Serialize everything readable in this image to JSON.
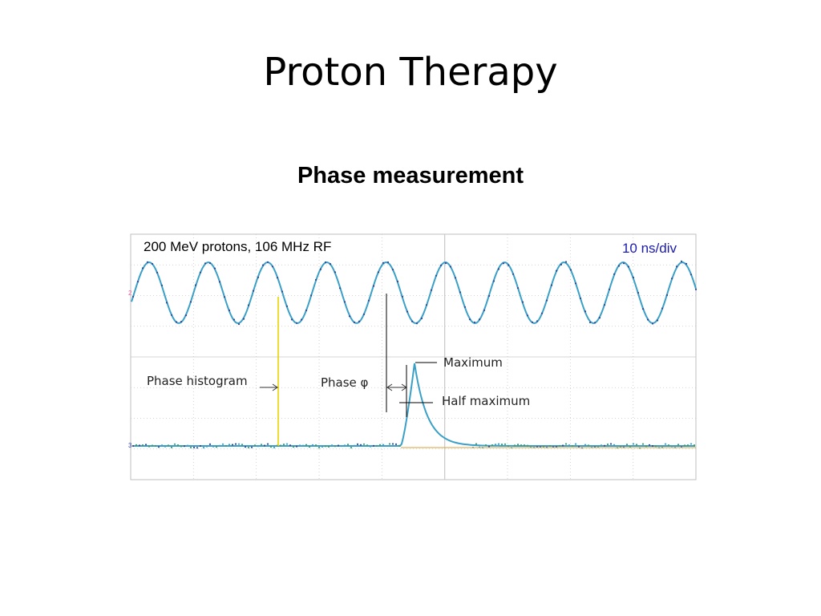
{
  "slide": {
    "title": "Proton Therapy",
    "subtitle": "Phase measurement"
  },
  "scope": {
    "beam_label": "200 MeV protons, 106 MHz RF",
    "timebase_label": "10 ns/div",
    "annotations": {
      "phase_histogram": "Phase histogram",
      "phase": "Phase φ",
      "maximum": "Maximum",
      "half_maximum": "Half maximum"
    },
    "colors": {
      "trace": "#3aa0c8",
      "trace_dark": "#35459a",
      "trace_green": "#3e9a6a",
      "grid": "#c8c8c8",
      "histogram_marker": "#e8d400",
      "baseline": "#d9a23a",
      "channel_marker": "#e05a9a",
      "arrow": "#000000"
    }
  },
  "chart_data": {
    "type": "line",
    "title": "",
    "xlabel": "",
    "ylabel": "",
    "x_scale": "10 ns/div",
    "grid": true,
    "series": [
      {
        "name": "",
        "frequency_mhz": 106,
        "periods_shown": 10
      },
      {
        "name": "",
        "pulse_peak_div": 4.5,
        "pulse_rise_start_div": 4.25
      }
    ]
  }
}
